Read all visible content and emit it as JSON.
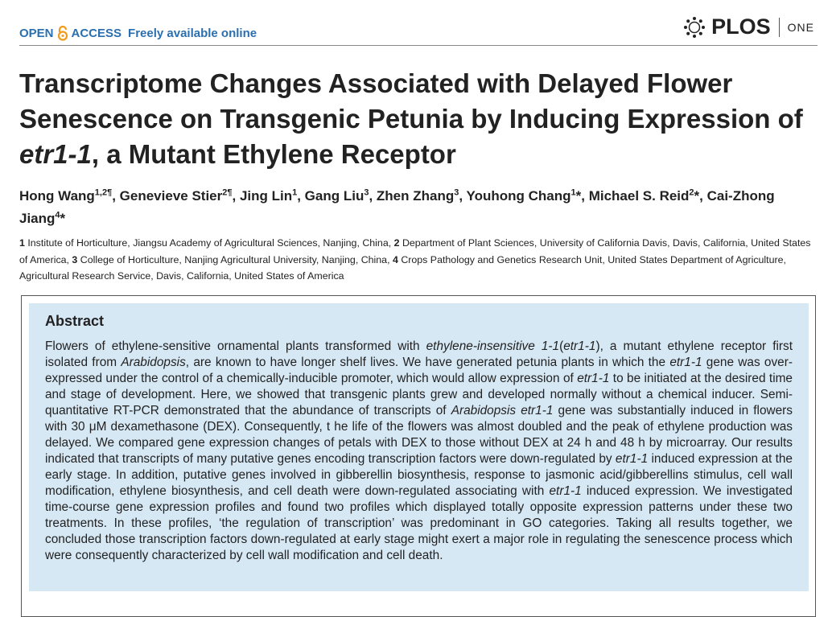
{
  "header": {
    "open": "OPEN",
    "access": "ACCESS",
    "tagline": "Freely available online",
    "brand": "PLOS",
    "journal": "ONE"
  },
  "title": [
    {
      "text": "Transcriptome Changes Associated with Delayed Flower Senescence on Transgenic Petunia by Inducing Expression of "
    },
    {
      "text": "etr1-1",
      "italic": true
    },
    {
      "text": ", a Mutant Ethylene Receptor"
    }
  ],
  "authors": [
    {
      "text": "Hong Wang"
    },
    {
      "text": "1,2¶",
      "sup": true
    },
    {
      "text": ", Genevieve Stier"
    },
    {
      "text": "2¶",
      "sup": true
    },
    {
      "text": ", Jing Lin"
    },
    {
      "text": "1",
      "sup": true
    },
    {
      "text": ", Gang Liu"
    },
    {
      "text": "3",
      "sup": true
    },
    {
      "text": ", Zhen Zhang"
    },
    {
      "text": "3",
      "sup": true
    },
    {
      "text": ", Youhong Chang"
    },
    {
      "text": "1",
      "sup": true
    },
    {
      "text": "*, Michael S. Reid"
    },
    {
      "text": "2",
      "sup": true
    },
    {
      "text": "*, Cai-Zhong Jiang"
    },
    {
      "text": "4",
      "sup": true
    },
    {
      "text": "*"
    }
  ],
  "affiliations": [
    {
      "text": "1",
      "bold": true
    },
    {
      "text": " Institute of Horticulture, Jiangsu Academy of Agricultural Sciences, Nanjing, China, "
    },
    {
      "text": "2",
      "bold": true
    },
    {
      "text": " Department of Plant Sciences, University of California Davis, Davis, California, United States of America, "
    },
    {
      "text": "3",
      "bold": true
    },
    {
      "text": " College of Horticulture, Nanjing Agricultural University, Nanjing, China, "
    },
    {
      "text": "4",
      "bold": true
    },
    {
      "text": " Crops Pathology and Genetics Research Unit, United States Department of Agriculture, Agricultural Research Service, Davis, California, United States of America"
    }
  ],
  "abstract": {
    "heading": "Abstract",
    "body": [
      {
        "text": "Flowers of ethylene-sensitive ornamental plants transformed with "
      },
      {
        "text": "ethylene-insensitive 1-1",
        "italic": true
      },
      {
        "text": "("
      },
      {
        "text": "etr1-1",
        "italic": true
      },
      {
        "text": "), a mutant ethylene receptor first isolated from "
      },
      {
        "text": "Arabidopsis",
        "italic": true
      },
      {
        "text": ", are known to have longer shelf lives. We have generated petunia plants in which the "
      },
      {
        "text": "etr1-1",
        "italic": true
      },
      {
        "text": " gene was over-expressed under the control of a chemically-inducible promoter, which would allow expression of "
      },
      {
        "text": "etr1-1",
        "italic": true
      },
      {
        "text": " to be initiated at the desired time and stage of development. Here, we showed that transgenic plants grew and developed normally without a chemical inducer. Semi-quantitative RT-PCR demonstrated that the abundance of transcripts of "
      },
      {
        "text": "Arabidopsis etr1-1",
        "italic": true
      },
      {
        "text": " gene was substantially induced in flowers with 30 μM dexamethasone (DEX). Consequently, t he life of the flowers was almost doubled and the peak of ethylene production was delayed. We compared gene expression changes of petals with DEX to those without DEX at 24 h and 48 h by microarray. Our results indicated that transcripts of many putative genes encoding transcription factors were down-regulated by "
      },
      {
        "text": "etr1-1",
        "italic": true
      },
      {
        "text": " induced expression at the early stage. In addition, putative genes involved in gibberellin biosynthesis, response to jasmonic acid/gibberellins stimulus, cell wall modification, ethylene biosynthesis, and cell death were down-regulated associating with "
      },
      {
        "text": "etr1-1",
        "italic": true
      },
      {
        "text": " induced expression. We investigated time-course gene expression profiles and found two profiles which displayed totally opposite expression patterns under these two treatments. In these profiles, ‘the regulation of transcription’ was predominant in GO categories. Taking all results together, we concluded those transcription factors down-regulated at early stage might exert a major role in regulating the senescence process which were consequently characterized by cell wall modification and cell death."
      }
    ]
  }
}
